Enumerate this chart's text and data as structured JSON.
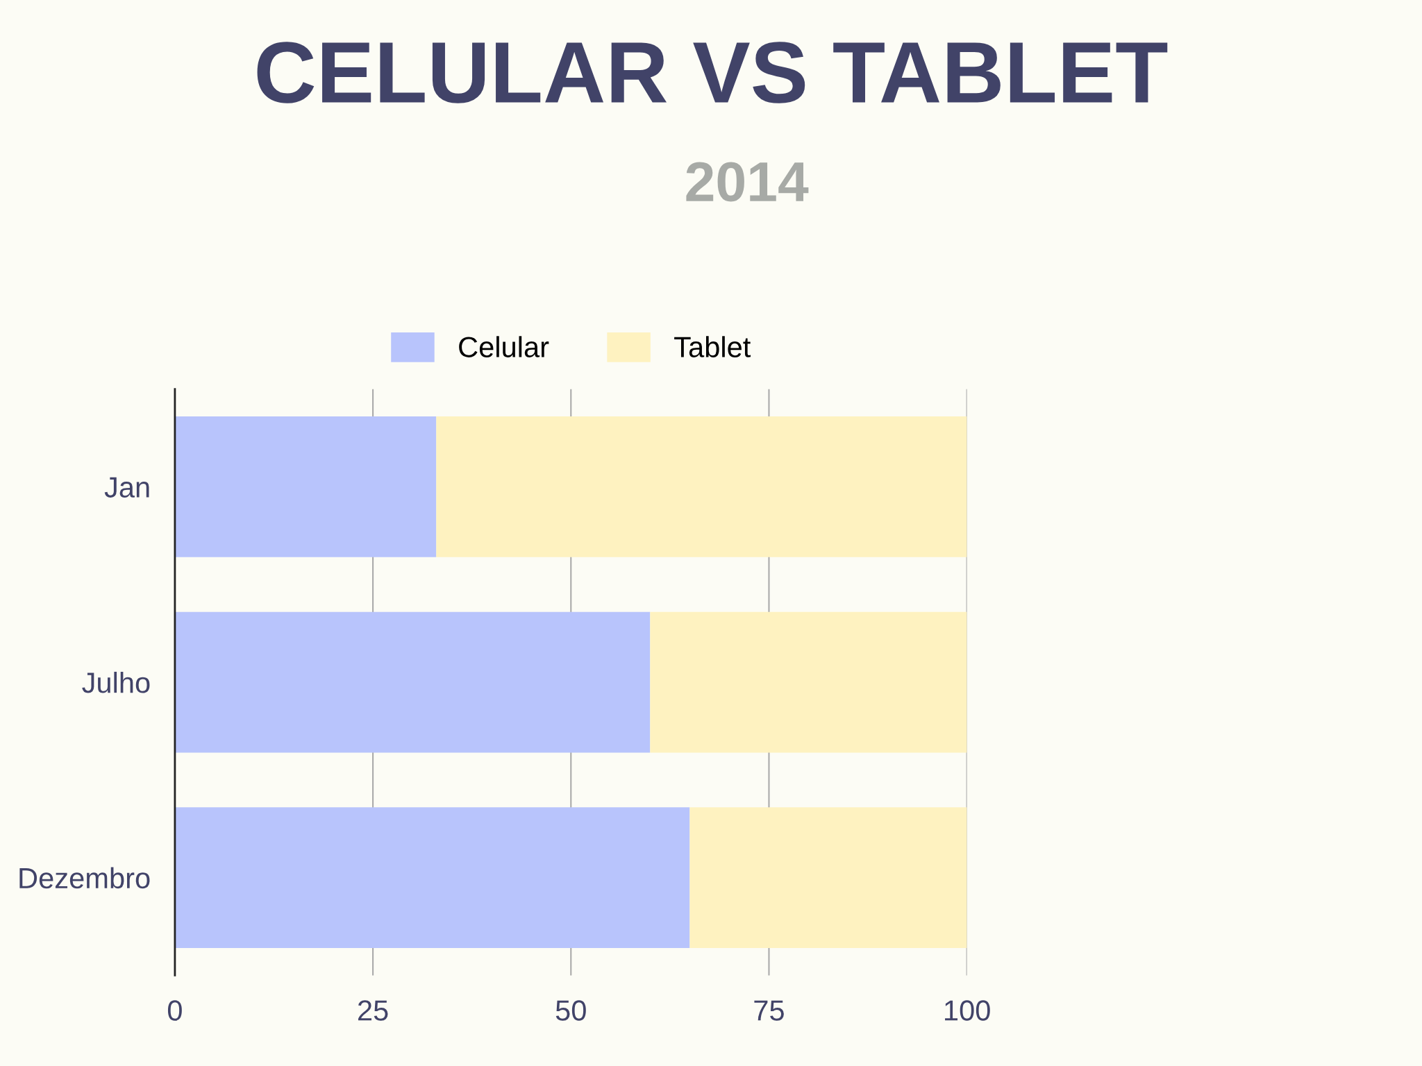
{
  "chart_data": {
    "type": "bar",
    "title": "CELULAR VS TABLET",
    "subtitle": "2014",
    "orientation": "horizontal",
    "stacked": true,
    "categories": [
      "Jan",
      "Julho",
      "Dezembro"
    ],
    "series": [
      {
        "name": "Celular",
        "color": "#b8c4fc",
        "values": [
          33,
          60,
          65
        ]
      },
      {
        "name": "Tablet",
        "color": "#fef2c0",
        "values": [
          67,
          40,
          35
        ]
      }
    ],
    "xlim": [
      0,
      100
    ],
    "xticks": [
      0,
      25,
      50,
      75,
      100
    ],
    "grid": "x",
    "legend": "top"
  }
}
